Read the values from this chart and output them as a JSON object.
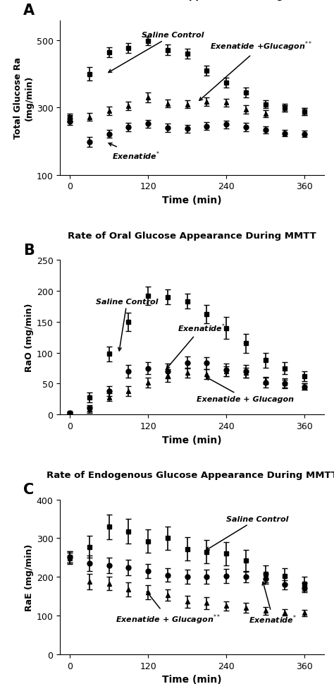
{
  "title_A": "Total Rate of Glucose Appearance During MMTT",
  "title_B": "Rate of Oral Glucose Appearance During MMTT",
  "title_C": "Rate of Endogenous Glucose Appearance During MMTT",
  "xlabel": "Time (min)",
  "ylabel_A": "Total Glucose Ra\n(mg/min)",
  "ylabel_B": "RaO (mg/min)",
  "ylabel_C": "RaE (mg/min)",
  "time": [
    0,
    30,
    60,
    90,
    120,
    150,
    180,
    210,
    240,
    270,
    300,
    330,
    360
  ],
  "A_saline": [
    270,
    400,
    465,
    478,
    498,
    472,
    460,
    410,
    375,
    345,
    310,
    300,
    288
  ],
  "A_saline_err": [
    12,
    20,
    15,
    15,
    12,
    15,
    15,
    15,
    15,
    15,
    12,
    12,
    10
  ],
  "A_exglu": [
    268,
    272,
    290,
    305,
    330,
    312,
    310,
    318,
    315,
    295,
    282,
    298,
    288
  ],
  "A_exglu_err": [
    10,
    12,
    12,
    12,
    15,
    12,
    12,
    12,
    12,
    12,
    10,
    10,
    10
  ],
  "A_exenatide": [
    258,
    198,
    222,
    242,
    252,
    240,
    237,
    245,
    250,
    242,
    234,
    224,
    222
  ],
  "A_exenatide_err": [
    10,
    15,
    12,
    12,
    12,
    12,
    12,
    12,
    12,
    12,
    10,
    10,
    10
  ],
  "B_saline": [
    2,
    28,
    98,
    150,
    192,
    190,
    183,
    162,
    140,
    115,
    88,
    75,
    62
  ],
  "B_saline_err": [
    2,
    8,
    12,
    15,
    15,
    12,
    12,
    15,
    18,
    15,
    12,
    10,
    8
  ],
  "B_exenatide": [
    2,
    10,
    38,
    70,
    75,
    70,
    84,
    83,
    72,
    70,
    52,
    51,
    45
  ],
  "B_exenatide_err": [
    2,
    5,
    8,
    10,
    10,
    12,
    10,
    10,
    10,
    10,
    8,
    8,
    5
  ],
  "B_exglu": [
    2,
    8,
    28,
    38,
    52,
    63,
    68,
    65,
    70,
    68,
    55,
    50,
    45
  ],
  "B_exglu_err": [
    2,
    5,
    6,
    8,
    8,
    10,
    8,
    8,
    8,
    8,
    6,
    6,
    5
  ],
  "C_saline": [
    252,
    278,
    330,
    318,
    292,
    300,
    272,
    265,
    260,
    242,
    208,
    202,
    182
  ],
  "C_saline_err": [
    15,
    28,
    32,
    32,
    30,
    30,
    30,
    30,
    30,
    28,
    22,
    20,
    18
  ],
  "C_exenatide": [
    252,
    235,
    230,
    225,
    215,
    205,
    200,
    200,
    202,
    200,
    195,
    180,
    172
  ],
  "C_exenatide_err": [
    15,
    20,
    20,
    20,
    18,
    18,
    18,
    18,
    18,
    15,
    12,
    12,
    12
  ],
  "C_exglu": [
    248,
    188,
    183,
    168,
    160,
    153,
    136,
    132,
    125,
    120,
    112,
    108,
    107
  ],
  "C_exglu_err": [
    15,
    20,
    18,
    18,
    18,
    15,
    15,
    15,
    12,
    12,
    10,
    8,
    8
  ],
  "ylim_A": [
    100,
    560
  ],
  "yticks_A": [
    100,
    300,
    500
  ],
  "ylim_B": [
    0,
    250
  ],
  "yticks_B": [
    0,
    50,
    100,
    150,
    200,
    250
  ],
  "ylim_C": [
    0,
    400
  ],
  "yticks_C": [
    0,
    100,
    200,
    300,
    400
  ],
  "xticks": [
    0,
    120,
    240,
    360
  ],
  "marker_saline": "s",
  "marker_exenatide": "o",
  "marker_exglu": "^",
  "linewidth": 1.5,
  "markersize": 5,
  "capsize": 3,
  "elinewidth": 1.2
}
